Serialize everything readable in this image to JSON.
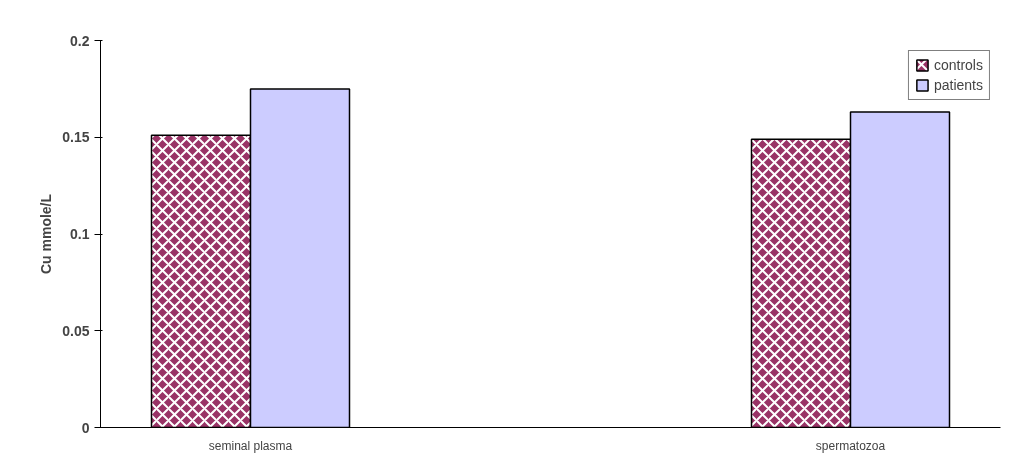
{
  "chart_data": {
    "type": "bar",
    "ylabel": "Cu mmole/L",
    "categories": [
      "seminal plasma",
      null,
      "spermatozoa"
    ],
    "series": [
      {
        "name": "controls",
        "color": "#993366",
        "values": [
          0.151,
          null,
          0.149
        ]
      },
      {
        "name": "patients",
        "color": "#ccccff",
        "values": [
          0.175,
          null,
          0.163
        ]
      }
    ],
    "ylim": [
      0,
      0.2
    ],
    "yticks": [
      0,
      0.05,
      0.1,
      0.15,
      0.2
    ],
    "grid": false,
    "legend": "top right"
  }
}
